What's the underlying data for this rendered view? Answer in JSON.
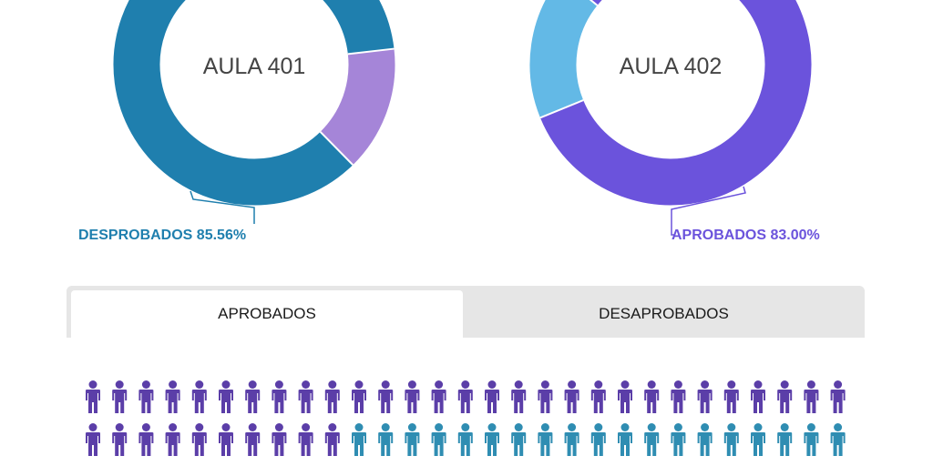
{
  "colors": {
    "teal": "#1f7fae",
    "purple": "#6b53dc",
    "light_purple": "#a585d8",
    "light_blue": "#63b9e6",
    "icon_purple": "#5b3ea8",
    "icon_teal": "#2f8db2"
  },
  "tabs": {
    "approved_label": "APROBADOS",
    "disapproved_label": "DESAPROBADOS",
    "active": "approved"
  },
  "chart_data": [
    {
      "type": "pie",
      "variant": "donut",
      "title": "AULA 401",
      "slices": [
        {
          "name": "DESPROBADOS",
          "value": 85.56,
          "color": "#1f7fae"
        },
        {
          "name": "APROBADOS",
          "value": 14.44,
          "color": "#a585d8"
        }
      ],
      "callout": {
        "text": "DESPROBADOS 85.56%"
      }
    },
    {
      "type": "pie",
      "variant": "donut",
      "title": "AULA 402",
      "slices": [
        {
          "name": "APROBADOS",
          "value": 83.0,
          "color": "#6b53dc"
        },
        {
          "name": "DESAPROBADOS",
          "value": 17.0,
          "color": "#63b9e6"
        }
      ],
      "callout": {
        "text": "APROBADOS 83.00%"
      }
    }
  ],
  "people_chart": {
    "icon": "person-icon",
    "rows": [
      {
        "purple": 29,
        "teal": 0
      },
      {
        "purple": 10,
        "teal": 19
      }
    ]
  }
}
